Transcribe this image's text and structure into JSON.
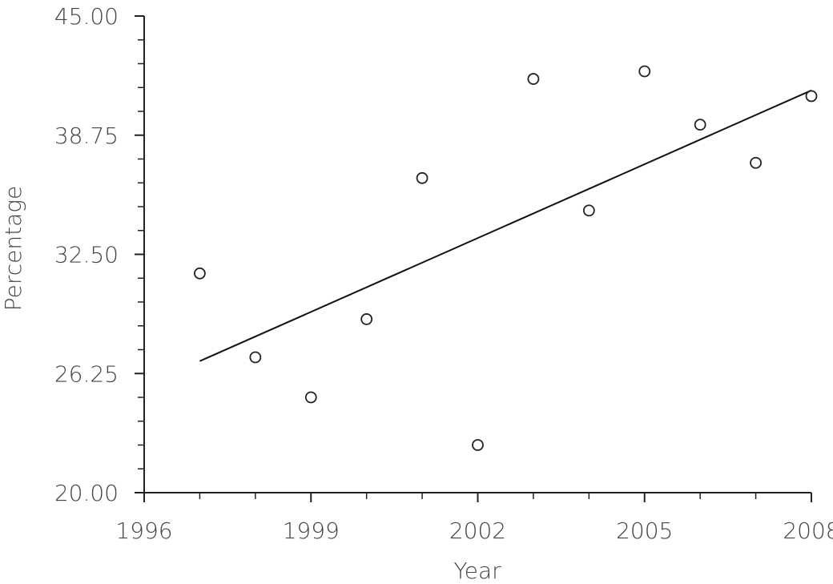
{
  "chart_data": {
    "type": "scatter",
    "x_label": "Year",
    "y_label": "Percentage",
    "x": [
      1997,
      1998,
      1999,
      2000,
      2001,
      2002,
      2003,
      2004,
      2005,
      2006,
      2007,
      2008
    ],
    "values": [
      31.5,
      27.1,
      25.0,
      29.1,
      36.5,
      22.5,
      41.7,
      34.8,
      42.1,
      39.3,
      37.3,
      40.8
    ],
    "color": "#222222",
    "trend_line": {
      "x": [
        1997,
        2008
      ],
      "values": [
        26.9,
        41.1
      ]
    },
    "xlim": [
      1996,
      2008
    ],
    "xticks": [
      1996,
      1999,
      2002,
      2005,
      2008
    ],
    "x_minor_ticks": [
      1997,
      1998,
      2000,
      2001,
      2003,
      2004,
      2006,
      2007
    ],
    "ylim": [
      20,
      45
    ],
    "yticks": [
      {
        "value": 20,
        "label": "20.00"
      },
      {
        "value": 26.25,
        "label": "26.25"
      },
      {
        "value": 32.5,
        "label": "32.50"
      },
      {
        "value": 38.75,
        "label": "38.75"
      },
      {
        "value": 45,
        "label": "45.00"
      }
    ],
    "y_minor_ticks": [
      21.25,
      22.5,
      23.75,
      25,
      27.5,
      28.75,
      30,
      31.25,
      33.75,
      35,
      36.25,
      37.5,
      40,
      41.25,
      42.5,
      43.75
    ]
  }
}
